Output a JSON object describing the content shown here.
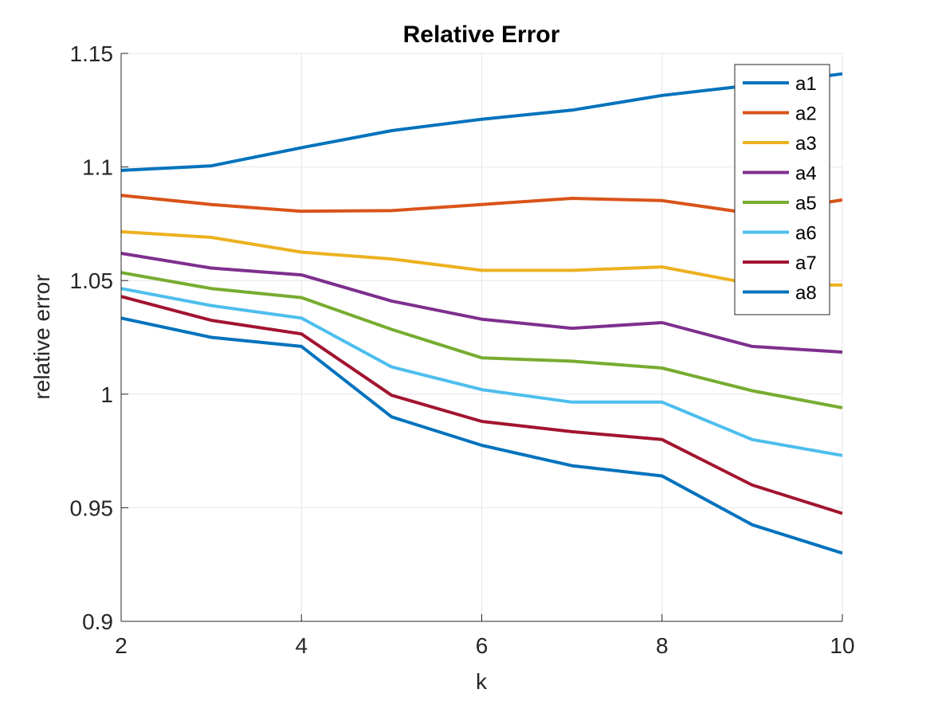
{
  "chart_data": {
    "type": "line",
    "title": "Relative Error",
    "xlabel": "k",
    "ylabel": "relative error",
    "xlim": [
      2,
      10
    ],
    "ylim": [
      0.9,
      1.15
    ],
    "xticks": [
      2,
      4,
      6,
      8,
      10
    ],
    "xtick_labels": [
      "2",
      "4",
      "6",
      "8",
      "10"
    ],
    "yticks": [
      0.9,
      0.95,
      1.0,
      1.05,
      1.1,
      1.15
    ],
    "ytick_labels": [
      "0.9",
      "0.95",
      "1",
      "1.05",
      "1.1",
      "1.15"
    ],
    "grid": true,
    "legend_position": "top-right",
    "x": [
      2,
      3,
      4,
      5,
      6,
      7,
      8,
      9,
      10
    ],
    "series": [
      {
        "name": "a1",
        "color": "#0072BD",
        "values": [
          1.0985,
          1.1005,
          1.1085,
          1.116,
          1.121,
          1.125,
          1.1315,
          1.136,
          1.141
        ]
      },
      {
        "name": "a2",
        "color": "#D95319",
        "values": [
          1.0875,
          1.0835,
          1.0805,
          1.0808,
          1.0835,
          1.0862,
          1.0852,
          1.0795,
          1.0855
        ]
      },
      {
        "name": "a3",
        "color": "#EDB120",
        "values": [
          1.0715,
          1.069,
          1.0625,
          1.0595,
          1.0545,
          1.0545,
          1.056,
          1.0485,
          1.048
        ]
      },
      {
        "name": "a4",
        "color": "#7E2F8E",
        "values": [
          1.062,
          1.0555,
          1.0525,
          1.041,
          1.033,
          1.029,
          1.0315,
          1.021,
          1.0185
        ]
      },
      {
        "name": "a5",
        "color": "#77AC30",
        "values": [
          1.0535,
          1.0465,
          1.0425,
          1.0285,
          1.016,
          1.0145,
          1.0115,
          1.0015,
          0.994
        ]
      },
      {
        "name": "a6",
        "color": "#4DBEEE",
        "values": [
          1.0465,
          1.039,
          1.0335,
          1.012,
          1.002,
          0.9965,
          0.9965,
          0.98,
          0.973
        ]
      },
      {
        "name": "a7",
        "color": "#A2142F",
        "values": [
          1.043,
          1.0325,
          1.0265,
          0.9995,
          0.988,
          0.9835,
          0.98,
          0.96,
          0.9475
        ]
      },
      {
        "name": "a8",
        "color": "#0072BD",
        "values": [
          1.0335,
          1.025,
          1.021,
          0.99,
          0.9775,
          0.9685,
          0.964,
          0.9425,
          0.93
        ]
      }
    ]
  }
}
